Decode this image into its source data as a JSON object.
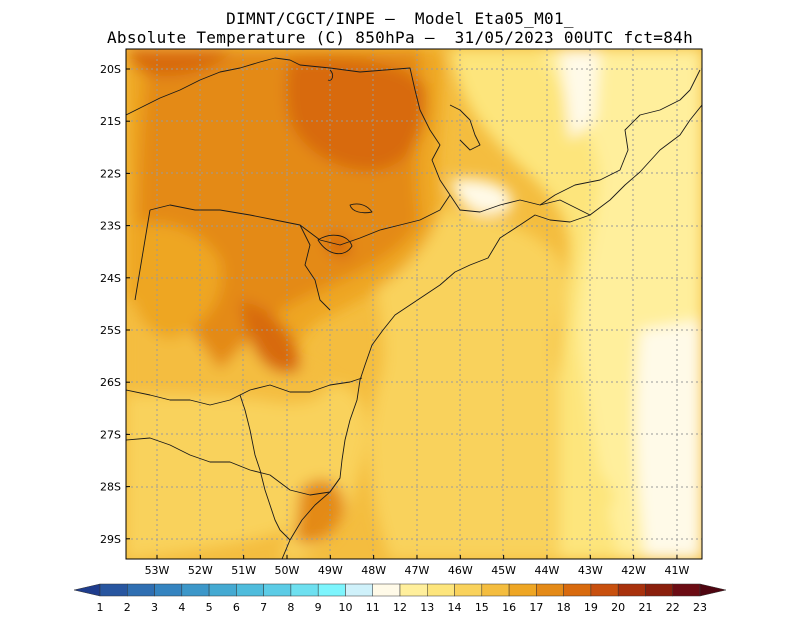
{
  "header": {
    "title_line1": "DIMNT/CGCT/INPE –  Model Eta05_M01_",
    "title_line2": "Absolute Temperature (C) 850hPa –  31/05/2023 00UTC fct=84h"
  },
  "map": {
    "lat_labels": [
      "20S",
      "21S",
      "22S",
      "23S",
      "24S",
      "25S",
      "26S",
      "27S",
      "28S",
      "29S"
    ],
    "lon_labels": [
      "53W",
      "52W",
      "51W",
      "50W",
      "49W",
      "48W",
      "47W",
      "46W",
      "45W",
      "44W",
      "43W",
      "42W",
      "41W"
    ],
    "gridlines": "dotted"
  },
  "colorbar": {
    "labels": [
      "1",
      "2",
      "3",
      "4",
      "5",
      "6",
      "7",
      "8",
      "9",
      "10",
      "11",
      "12",
      "13",
      "14",
      "15",
      "16",
      "17",
      "18",
      "19",
      "20",
      "21",
      "22",
      "23"
    ],
    "colors": [
      "#1e3c8c",
      "#2856a0",
      "#2f6fb2",
      "#3584c0",
      "#3c97c9",
      "#45aad2",
      "#4fbcdc",
      "#5ccce6",
      "#6ee0f0",
      "#7df5fd",
      "#cff1fa",
      "#fffae8",
      "#ffef9c",
      "#fde57c",
      "#f9d25c",
      "#f4bd3f",
      "#eea624",
      "#e48a18",
      "#d86a0e",
      "#c8500e",
      "#a8310c",
      "#8a1f0c",
      "#6c0c14",
      "#4e0510"
    ]
  }
}
